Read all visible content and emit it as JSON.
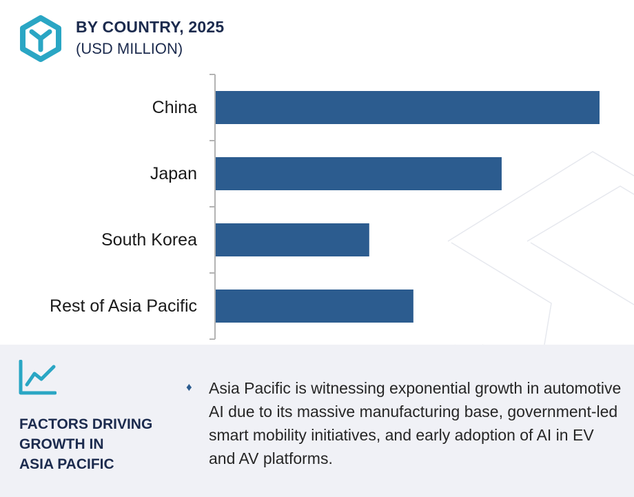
{
  "header": {
    "title": "BY COUNTRY, 2025",
    "subtitle": "(USD MILLION)"
  },
  "colors": {
    "bar": "#2c5c8f",
    "accent": "#2aa6c4",
    "title": "#1c2b4e",
    "panel_bg": "#f0f1f6"
  },
  "icons": {
    "logo": "hexagon-y-logo-icon",
    "factors": "trend-line-chart-icon",
    "bullet": "diamond-bullet-icon"
  },
  "chart_data": {
    "type": "bar",
    "orientation": "horizontal",
    "title": "BY COUNTRY, 2025",
    "subtitle": "(USD MILLION)",
    "categories": [
      "China",
      "Japan",
      "South Korea",
      "Rest of Asia Pacific"
    ],
    "values": [
      100,
      74.5,
      40,
      51.5
    ],
    "value_axis_labels": "none",
    "grid": false,
    "legend": "none"
  },
  "factors": {
    "title_lines": [
      "FACTORS DRIVING",
      "GROWTH IN",
      "ASIA PACIFIC"
    ],
    "bullet": "♦",
    "text": "Asia Pacific is witnessing exponential growth in automotive AI due to its massive manufacturing base, government-led smart mobility initiatives, and early adoption of AI in EV and AV platforms."
  }
}
